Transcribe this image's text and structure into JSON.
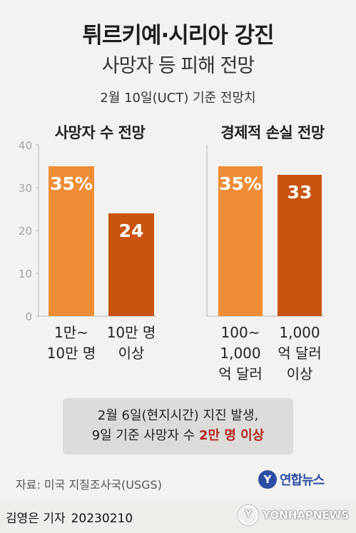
{
  "header": {
    "title": "튀르키예·시리아 강진",
    "subtitle": "사망자 등 피해 전망",
    "date_note": "2월 10일(UCT) 기준 전망치"
  },
  "chart_data": [
    {
      "type": "bar",
      "title": "사망자 수 전망",
      "categories": [
        "1만~\n10만 명",
        "10만 명\n이상"
      ],
      "values": [
        35,
        24
      ],
      "value_labels": [
        "35%",
        "24"
      ],
      "colors": [
        "#ee8d35",
        "#c9530f"
      ],
      "ylim": [
        0,
        40
      ],
      "yticks": [
        0,
        10,
        20,
        30,
        40
      ],
      "grid": false
    },
    {
      "type": "bar",
      "title": "경제적 손실 전망",
      "categories": [
        "100~\n1,000\n억 달러",
        "1,000\n억 달러\n이상"
      ],
      "values": [
        35,
        33
      ],
      "value_labels": [
        "35%",
        "33"
      ],
      "colors": [
        "#ee8d35",
        "#c9530f"
      ],
      "ylim": [
        0,
        40
      ],
      "grid": false
    }
  ],
  "note": {
    "line1": "2월 6일(현지시간) 지진 발생,",
    "line2_prefix": "9일 기준 사망자 수 ",
    "line2_highlight": "2만 명 이상"
  },
  "source": "자료: 미국 지질조사국(USGS)",
  "brand": {
    "name": "연합뉴스",
    "logo_char": "Y"
  },
  "footer": {
    "reporter": "김영은 기자",
    "date": "20230210",
    "watermark": "YONHAPNEWS"
  }
}
